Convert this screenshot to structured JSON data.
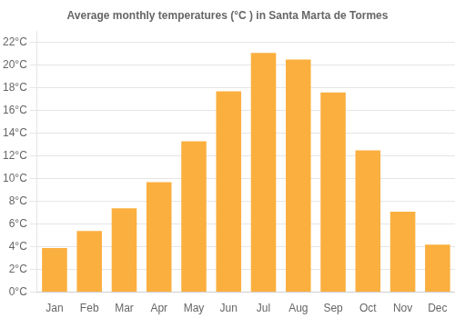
{
  "chart_data": {
    "type": "bar",
    "title": "Average monthly temperatures (°C ) in Santa Marta de Tormes",
    "categories": [
      "Jan",
      "Feb",
      "Mar",
      "Apr",
      "May",
      "Jun",
      "Jul",
      "Aug",
      "Sep",
      "Oct",
      "Nov",
      "Dec"
    ],
    "values": [
      3.9,
      5.4,
      7.4,
      9.7,
      13.3,
      17.7,
      21.1,
      20.5,
      17.6,
      12.5,
      7.1,
      4.2
    ],
    "color": "#FBAF3F",
    "ylim": [
      0,
      23
    ],
    "yticks": [
      {
        "value": 0,
        "label": "0°C"
      },
      {
        "value": 2,
        "label": "2°C"
      },
      {
        "value": 4,
        "label": "4°C"
      },
      {
        "value": 6,
        "label": "6°C"
      },
      {
        "value": 8,
        "label": "8°C"
      },
      {
        "value": 10,
        "label": "10°C"
      },
      {
        "value": 12,
        "label": "12°C"
      },
      {
        "value": 14,
        "label": "14°C"
      },
      {
        "value": 16,
        "label": "16°C"
      },
      {
        "value": 18,
        "label": "18°C"
      },
      {
        "value": 20,
        "label": "20°C"
      },
      {
        "value": 22,
        "label": "22°C"
      }
    ],
    "grid": true
  }
}
